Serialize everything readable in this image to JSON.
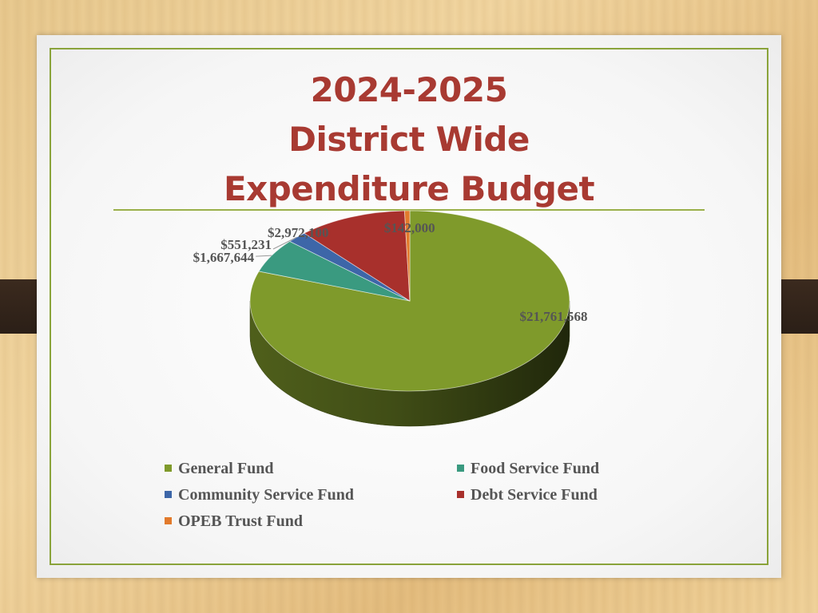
{
  "slide": {
    "title_lines": [
      "2024-2025",
      "District Wide",
      "Expenditure Budget"
    ]
  },
  "colors": {
    "title": "#a83a32",
    "frame": "#8aa33a",
    "label_text": "#555555"
  },
  "chart_data": {
    "type": "pie",
    "style": "3d",
    "legend_position": "bottom",
    "series": [
      {
        "name": "General Fund",
        "value": 21761568,
        "label": "$21,761,568",
        "color": "#7f9a2b"
      },
      {
        "name": "Food Service Fund",
        "value": 1667644,
        "label": "$1,667,644",
        "color": "#3a9a80"
      },
      {
        "name": "Community Service Fund",
        "value": 551231,
        "label": "$551,231",
        "color": "#3d66a8"
      },
      {
        "name": "Debt Service Fund",
        "value": 2972100,
        "label": "$2,972,100",
        "color": "#a8302c"
      },
      {
        "name": "OPEB Trust Fund",
        "value": 142000,
        "label": "$142,000",
        "color": "#e27a2c"
      }
    ]
  }
}
